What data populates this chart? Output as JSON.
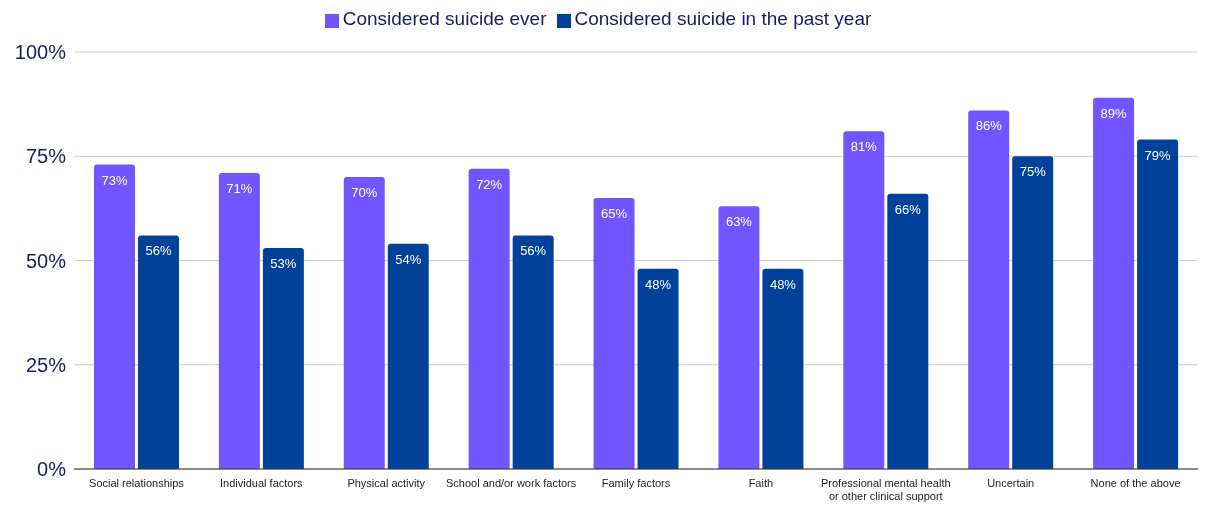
{
  "chart_data": {
    "type": "bar",
    "categories": [
      "Social relationships",
      "Individual factors",
      "Physical activity",
      "School and/or work factors",
      "Family factors",
      "Faith",
      "Professional mental health or other clinical support",
      "Uncertain",
      "None of the above"
    ],
    "series": [
      {
        "name": "Considered suicide ever",
        "color": "#7156ff",
        "values": [
          73,
          71,
          70,
          72,
          65,
          63,
          81,
          86,
          89
        ],
        "value_labels": [
          "73%",
          "71%",
          "70%",
          "72%",
          "65%",
          "63%",
          "81%",
          "86%",
          "89%"
        ]
      },
      {
        "name": "Considered suicide in the past year",
        "color": "#00429a",
        "values": [
          56,
          53,
          54,
          56,
          48,
          48,
          66,
          75,
          79
        ],
        "value_labels": [
          "56%",
          "53%",
          "54%",
          "56%",
          "48%",
          "48%",
          "66%",
          "75%",
          "79%"
        ]
      }
    ],
    "ylim": [
      0,
      100
    ],
    "yticks": [
      {
        "value": 0,
        "label": "0%"
      },
      {
        "value": 25,
        "label": "25%"
      },
      {
        "value": 50,
        "label": "50%"
      },
      {
        "value": 75,
        "label": "75%"
      },
      {
        "value": 100,
        "label": "100%"
      }
    ],
    "grid": "y",
    "legend": "top"
  }
}
